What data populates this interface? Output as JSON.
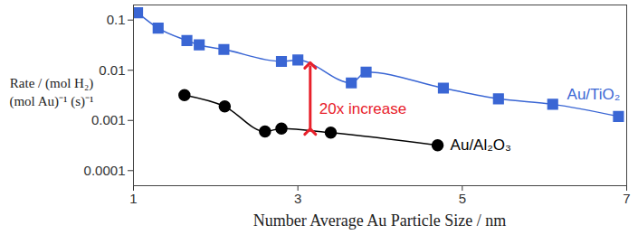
{
  "chart_data": {
    "type": "line",
    "xlabel": "Number Average Au Particle Size / nm",
    "ylabel": "Rate / (mol H₂)\n(mol Au)⁻¹ (s)⁻¹",
    "log": "y",
    "xlim": [
      1,
      7
    ],
    "xticks": [
      1,
      3,
      5,
      7
    ],
    "ylim": [
      5e-05,
      0.2
    ],
    "yticks": [
      0.0001,
      0.001,
      0.01,
      0.1
    ],
    "series": [
      {
        "name": "Au/TiO₂",
        "color": "#3a66d4",
        "marker": "square",
        "x": [
          1.05,
          1.3,
          1.65,
          1.8,
          2.1,
          2.8,
          3.0,
          3.65,
          3.83,
          4.77,
          5.44,
          6.1,
          6.9
        ],
        "values": [
          0.14,
          0.069,
          0.039,
          0.032,
          0.026,
          0.015,
          0.016,
          0.0056,
          0.0092,
          0.0044,
          0.0027,
          0.0021,
          0.0012
        ]
      },
      {
        "name": "Au/Al₂O₃",
        "color": "#000000",
        "marker": "circle",
        "x": [
          1.62,
          2.11,
          2.6,
          2.8,
          3.4,
          4.7
        ],
        "values": [
          0.0032,
          0.0019,
          0.0006,
          0.00069,
          0.00057,
          0.00032
        ]
      }
    ],
    "annotations": [
      {
        "text": "20x increase",
        "x": 3.15,
        "y_from": 0.0006,
        "y_to": 0.0125,
        "color": "#e8212b"
      }
    ]
  }
}
